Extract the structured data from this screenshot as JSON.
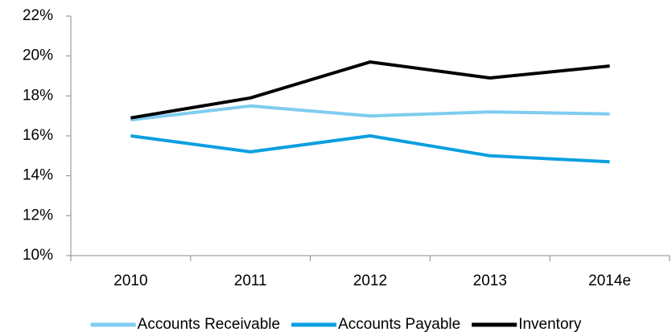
{
  "chart_data": {
    "type": "line",
    "categories": [
      "2010",
      "2011",
      "2012",
      "2013",
      "2014e"
    ],
    "series": [
      {
        "name": "Accounts Receivable",
        "color": "#7fccf0",
        "values": [
          16.8,
          17.5,
          17.0,
          17.2,
          17.1
        ]
      },
      {
        "name": "Accounts Payable",
        "color": "#0b9fe0",
        "values": [
          16.0,
          15.2,
          16.0,
          15.0,
          14.7
        ]
      },
      {
        "name": "Inventory",
        "color": "#000000",
        "values": [
          16.9,
          17.9,
          19.7,
          18.9,
          19.5
        ]
      }
    ],
    "ylim": [
      10,
      22
    ],
    "yticks": [
      {
        "value": 10,
        "label": "10%"
      },
      {
        "value": 12,
        "label": "12%"
      },
      {
        "value": 14,
        "label": "14%"
      },
      {
        "value": 16,
        "label": "16%"
      },
      {
        "value": 18,
        "label": "18%"
      },
      {
        "value": 20,
        "label": "20%"
      },
      {
        "value": 22,
        "label": "22%"
      }
    ],
    "grid": false,
    "legend": "bottom"
  }
}
